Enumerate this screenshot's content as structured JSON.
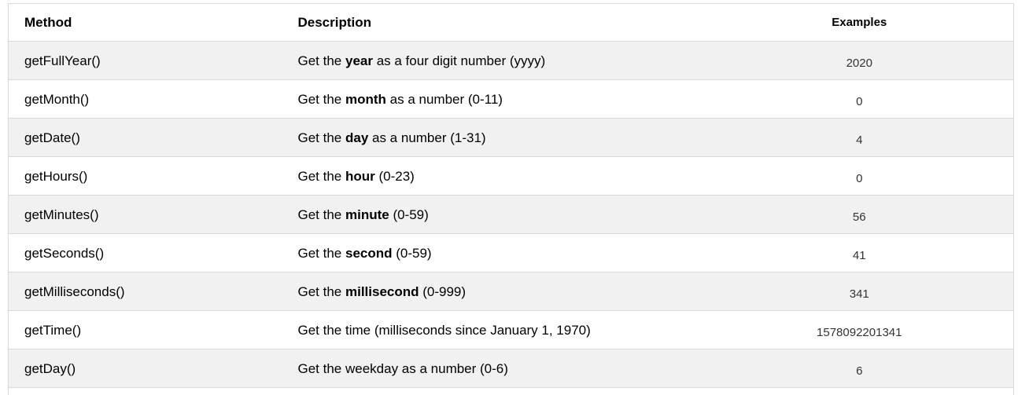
{
  "table": {
    "columns": [
      "Method",
      "Description",
      "Examples"
    ],
    "rows": [
      {
        "method": "getFullYear()",
        "desc_prefix": "Get the ",
        "desc_bold": "year",
        "desc_suffix": " as a four digit number (yyyy)",
        "example": "2020"
      },
      {
        "method": "getMonth()",
        "desc_prefix": "Get the ",
        "desc_bold": "month",
        "desc_suffix": " as a number (0-11)",
        "example": "0"
      },
      {
        "method": "getDate()",
        "desc_prefix": "Get the ",
        "desc_bold": "day",
        "desc_suffix": " as a number (1-31)",
        "example": "4"
      },
      {
        "method": "getHours()",
        "desc_prefix": "Get the ",
        "desc_bold": "hour",
        "desc_suffix": " (0-23)",
        "example": "0"
      },
      {
        "method": "getMinutes()",
        "desc_prefix": "Get the ",
        "desc_bold": "minute",
        "desc_suffix": " (0-59)",
        "example": "56"
      },
      {
        "method": "getSeconds()",
        "desc_prefix": "Get the ",
        "desc_bold": "second",
        "desc_suffix": " (0-59)",
        "example": "41"
      },
      {
        "method": "getMilliseconds()",
        "desc_prefix": "Get the ",
        "desc_bold": "millisecond",
        "desc_suffix": " (0-999)",
        "example": "341"
      },
      {
        "method": "getTime()",
        "desc_prefix": "Get the time (milliseconds since January 1, 1970)",
        "desc_bold": "",
        "desc_suffix": "",
        "example": "1578092201341"
      },
      {
        "method": "getDay()",
        "desc_prefix": "Get the weekday as a number (0-6)",
        "desc_bold": "",
        "desc_suffix": "",
        "example": "6"
      }
    ],
    "colors": {
      "stripe_bg": "#f1f1f1",
      "border": "#d9d9d9",
      "text": "#000000",
      "example_text": "#333333"
    }
  }
}
